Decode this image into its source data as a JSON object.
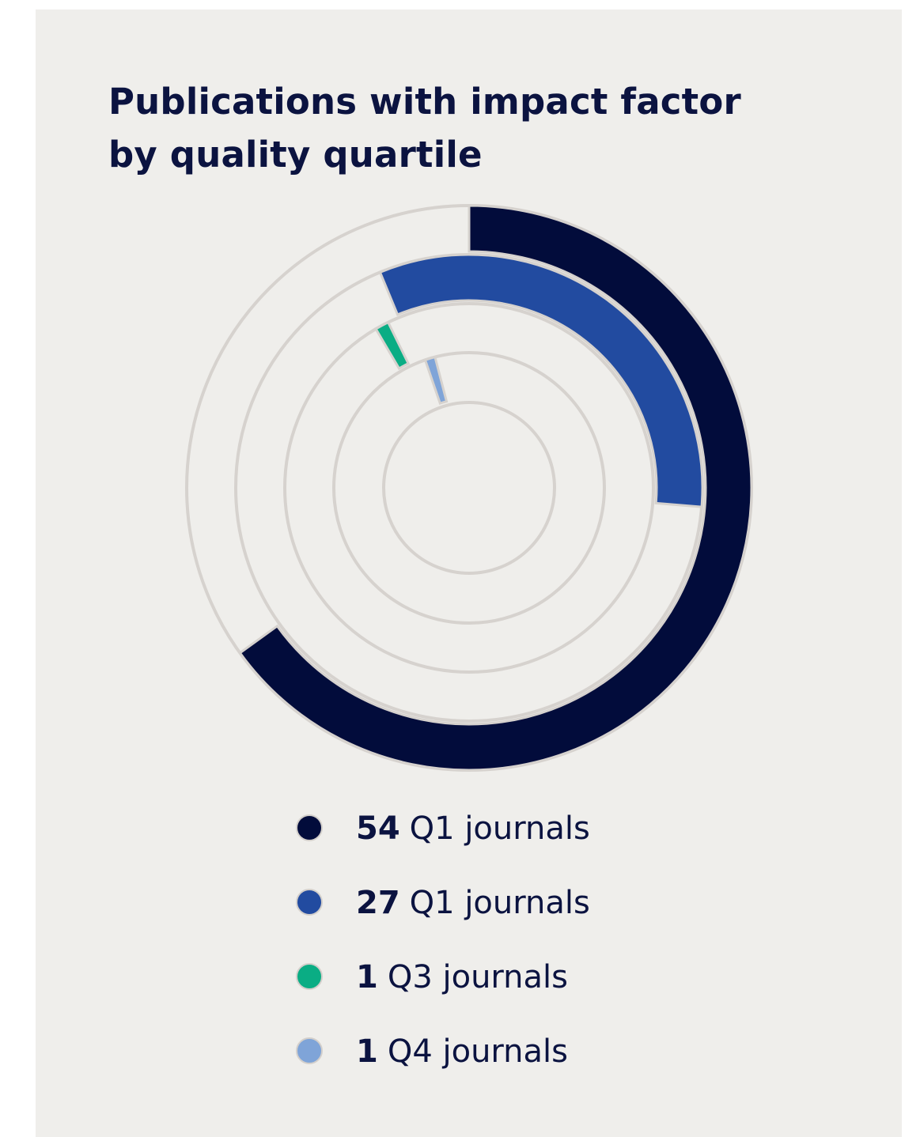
{
  "title_lines": [
    "Publications with impact factor",
    "by quality quartile"
  ],
  "colors": {
    "background": "#efeeeb",
    "track": "#d6d2ce",
    "q1_dark": "#020c3b",
    "q1_blue": "#224ba0",
    "q3": "#0aad84",
    "q4": "#7fa4d8",
    "text": "#0b1340"
  },
  "chart_data": {
    "type": "radial bar",
    "total": 83,
    "series": [
      {
        "value": 54,
        "label": "Q1 journals",
        "color": "#020c3b"
      },
      {
        "value": 27,
        "label": "Q1 journals",
        "color": "#224ba0"
      },
      {
        "value": 1,
        "label": "Q3 journals",
        "color": "#0aad84"
      },
      {
        "value": 1,
        "label": "Q4 journals",
        "color": "#7fa4d8"
      }
    ]
  },
  "legend": [
    {
      "value": "54",
      "label": "Q1 journals"
    },
    {
      "value": "27",
      "label": "Q1 journals"
    },
    {
      "value": "1",
      "label": "Q3 journals"
    },
    {
      "value": "1",
      "label": "Q4 journals"
    }
  ]
}
